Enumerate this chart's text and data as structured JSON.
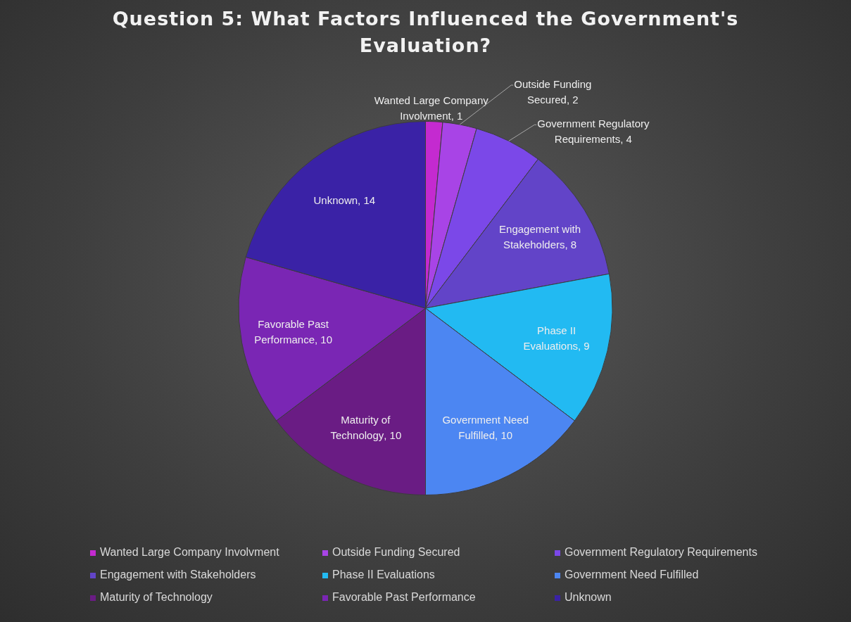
{
  "chart_data": {
    "type": "pie",
    "title": "Question 5: What Factors Influenced the Government's Evaluation?",
    "categories": [
      "Wanted Large Company Involvment",
      "Outside Funding Secured",
      "Government Regulatory Requirements",
      "Engagement with Stakeholders",
      "Phase II Evaluations",
      "Government Need Fulfilled",
      "Maturity of Technology",
      "Favorable Past Performance",
      "Unknown"
    ],
    "values": [
      1,
      2,
      4,
      8,
      9,
      10,
      10,
      10,
      14
    ],
    "colors": [
      "#c42ad0",
      "#a844e6",
      "#7b48e8",
      "#6244c8",
      "#22baf2",
      "#4c86f2",
      "#6a1c84",
      "#7a26b4",
      "#3a22a6"
    ],
    "value_labels": [
      ", 1",
      ", 2",
      ", 4",
      ", 8",
      ", 9",
      ", 10",
      ", 10",
      ", 10",
      ", 14"
    ],
    "legend": "bottom"
  }
}
